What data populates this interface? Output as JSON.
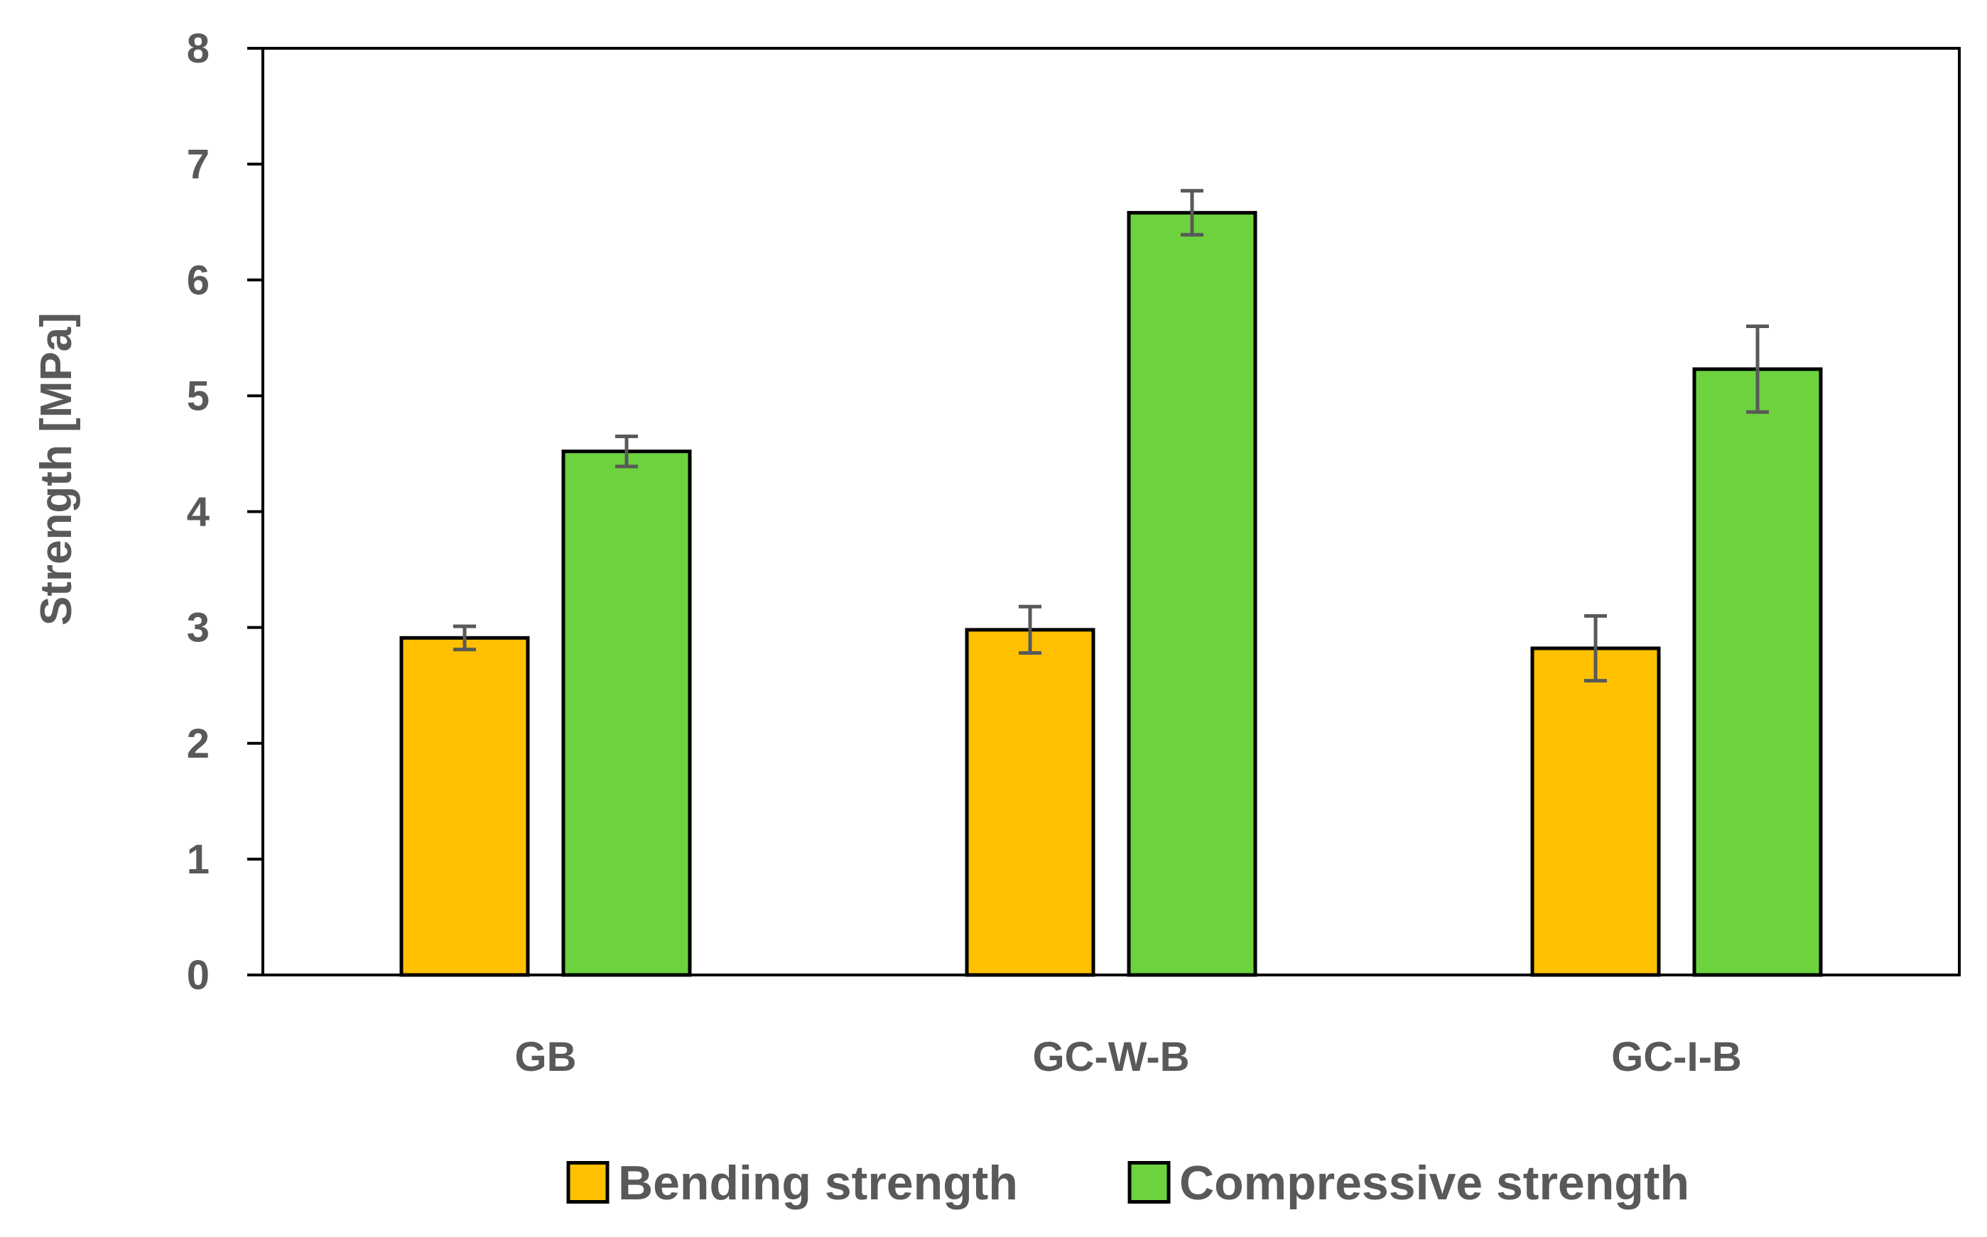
{
  "chart_data": {
    "type": "bar",
    "title": "",
    "xlabel": "",
    "ylabel": "Strength [MPa]",
    "ylim": [
      0,
      8
    ],
    "yticks": [
      "0",
      "1",
      "2",
      "3",
      "4",
      "5",
      "6",
      "7",
      "8"
    ],
    "categories": [
      "GB",
      "GC-W-B",
      "GC-I-B"
    ],
    "grid": false,
    "legend_position": "bottom",
    "series": [
      {
        "name": "Bending strength",
        "color": "#FFC000",
        "values": [
          2.91,
          2.98,
          2.82
        ],
        "errors": [
          0.1,
          0.2,
          0.28
        ]
      },
      {
        "name": "Compressive strength",
        "color": "#6CD33F",
        "values": [
          4.52,
          6.58,
          5.23
        ],
        "errors": [
          0.13,
          0.19,
          0.37
        ]
      }
    ]
  }
}
